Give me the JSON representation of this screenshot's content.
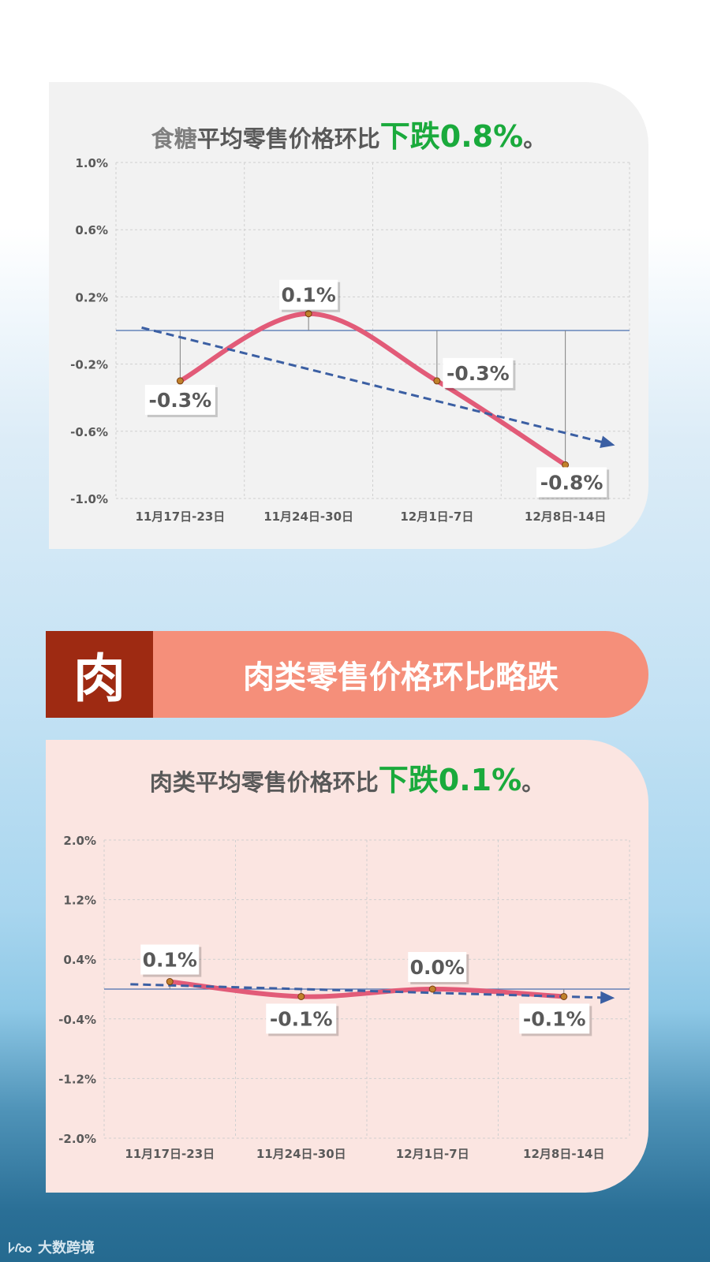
{
  "chart1": {
    "title_parts": [
      "食糖",
      "平均零售价格环比",
      "下跌0.8%",
      "。"
    ]
  },
  "banner": {
    "icon_char": "肉",
    "text": "肉类零售价格环比略跌"
  },
  "chart2": {
    "title_parts": [
      "肉类平均零售价格环比",
      "下跌0.1%",
      "。"
    ]
  },
  "watermark": {
    "text": "大数跨境"
  },
  "colors": {
    "line": "#e25b78",
    "trend": "#3b5fa3",
    "highlight": "#1aaa3c",
    "banner_dark": "#9e2a12",
    "banner_light": "#f58f7a"
  },
  "chart_data": [
    {
      "type": "line",
      "categories": [
        "11月17日-23日",
        "11月24日-30日",
        "12月1日-7日",
        "12月8日-14日"
      ],
      "series": [
        {
          "values": [
            -0.3,
            0.1,
            -0.3,
            -0.8
          ]
        }
      ],
      "data_labels": [
        "-0.3%",
        "0.1%",
        "-0.3%",
        "-0.8%"
      ],
      "title": "食糖平均零售价格环比下跌0.8%。",
      "ylim": [
        -1.0,
        1.0
      ],
      "yticks": [
        1.0,
        0.6,
        0.2,
        -0.2,
        -0.6,
        -1.0
      ],
      "ytick_labels": [
        "1.0%",
        "0.6%",
        "0.2%",
        "-0.2%",
        "-0.6%",
        "-1.0%"
      ],
      "trendline": true,
      "grid": true
    },
    {
      "type": "line",
      "categories": [
        "11月17日-23日",
        "11月24日-30日",
        "12月1日-7日",
        "12月8日-14日"
      ],
      "series": [
        {
          "values": [
            0.1,
            -0.1,
            0.0,
            -0.1
          ]
        }
      ],
      "data_labels": [
        "0.1%",
        "-0.1%",
        "0.0%",
        "-0.1%"
      ],
      "title": "肉类平均零售价格环比下跌0.1%。",
      "ylim": [
        -2.0,
        2.0
      ],
      "yticks": [
        2.0,
        1.2,
        0.4,
        -0.4,
        -1.2,
        -2.0
      ],
      "ytick_labels": [
        "2.0%",
        "1.2%",
        "0.4%",
        "-0.4%",
        "-1.2%",
        "-2.0%"
      ],
      "trendline": true,
      "grid": true
    }
  ]
}
